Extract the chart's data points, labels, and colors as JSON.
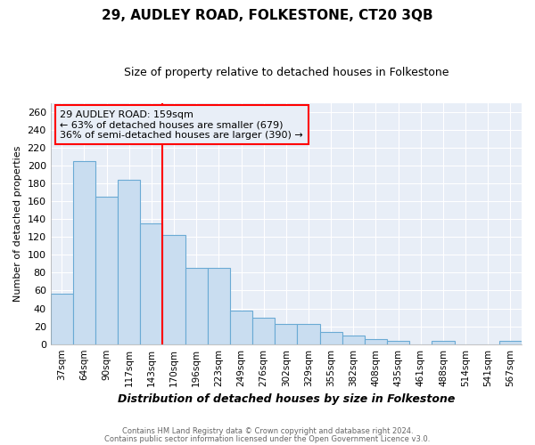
{
  "title": "29, AUDLEY ROAD, FOLKESTONE, CT20 3QB",
  "subtitle": "Size of property relative to detached houses in Folkestone",
  "xlabel": "Distribution of detached houses by size in Folkestone",
  "ylabel": "Number of detached properties",
  "bar_labels": [
    "37sqm",
    "64sqm",
    "90sqm",
    "117sqm",
    "143sqm",
    "170sqm",
    "196sqm",
    "223sqm",
    "249sqm",
    "276sqm",
    "302sqm",
    "329sqm",
    "355sqm",
    "382sqm",
    "408sqm",
    "435sqm",
    "461sqm",
    "488sqm",
    "514sqm",
    "541sqm",
    "567sqm"
  ],
  "bar_values": [
    56,
    205,
    165,
    184,
    135,
    122,
    85,
    85,
    38,
    30,
    23,
    23,
    14,
    10,
    6,
    4,
    0,
    4,
    0,
    0,
    4
  ],
  "bar_color": "#c9ddf0",
  "bar_edge_color": "#6aaad4",
  "annotation_text": "29 AUDLEY ROAD: 159sqm\n← 63% of detached houses are smaller (679)\n36% of semi-detached houses are larger (390) →",
  "footer1": "Contains HM Land Registry data © Crown copyright and database right 2024.",
  "footer2": "Contains public sector information licensed under the Open Government Licence v3.0.",
  "ylim": [
    0,
    270
  ],
  "yticks": [
    0,
    20,
    40,
    60,
    80,
    100,
    120,
    140,
    160,
    180,
    200,
    220,
    240,
    260
  ],
  "plot_bg_color": "#e8eef7",
  "fig_bg_color": "#ffffff",
  "grid_color": "#ffffff",
  "title_fontsize": 11,
  "subtitle_fontsize": 9,
  "red_line_index": 5.0
}
